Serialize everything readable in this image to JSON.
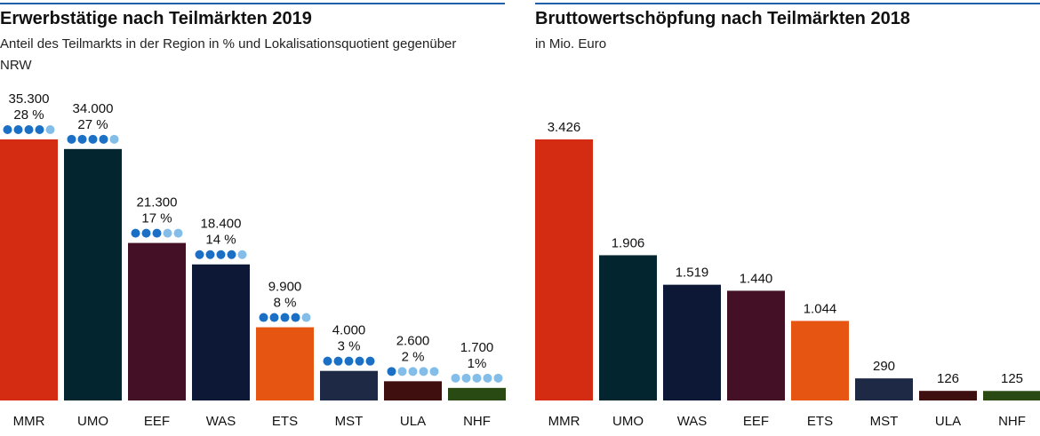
{
  "chart_data": [
    {
      "type": "bar",
      "title": "Erwerbstätige nach Teilmärkten 2019",
      "subtitle": "Anteil des Teilmarkts in der Region in % und Lokalisationsquotient gegenüber NRW",
      "categories": [
        "MMR",
        "UMO",
        "EEF",
        "WAS",
        "ETS",
        "MST",
        "ULA",
        "NHF"
      ],
      "values": [
        35300,
        34000,
        21300,
        18400,
        9900,
        4000,
        2600,
        1700
      ],
      "value_labels": [
        "35.300",
        "34.000",
        "21.300",
        "18.400",
        "9.900",
        "4.000",
        "2.600",
        "1.700"
      ],
      "shares": [
        28,
        27,
        17,
        14,
        8,
        3,
        2,
        1
      ],
      "share_labels": [
        "28 %",
        "27 %",
        "17 %",
        "14 %",
        "8 %",
        "3 %",
        "2 %",
        "1%"
      ],
      "lq_dots": [
        4,
        4,
        3,
        4,
        4,
        5,
        1,
        0
      ],
      "dot_colors": [
        "#1b6fc4",
        "#84bde8"
      ],
      "colors": [
        "#d42b13",
        "#022530",
        "#431025",
        "#0c1835",
        "#e65511",
        "#1e2a45",
        "#3f0f0f",
        "#2a4a14"
      ]
    },
    {
      "type": "bar",
      "title": "Bruttowertschöpfung nach Teilmärkten 2018",
      "subtitle": "in Mio. Euro",
      "categories": [
        "MMR",
        "UMO",
        "WAS",
        "EEF",
        "ETS",
        "MST",
        "ULA",
        "NHF"
      ],
      "values": [
        3426,
        1906,
        1519,
        1440,
        1044,
        290,
        126,
        125
      ],
      "value_labels": [
        "3.426",
        "1.906",
        "1.519",
        "1.440",
        "1.044",
        "290",
        "126",
        "125"
      ],
      "colors": [
        "#d42b13",
        "#022530",
        "#0c1835",
        "#431025",
        "#e65511",
        "#1e2a45",
        "#3f0f0f",
        "#2a4a14"
      ]
    }
  ]
}
